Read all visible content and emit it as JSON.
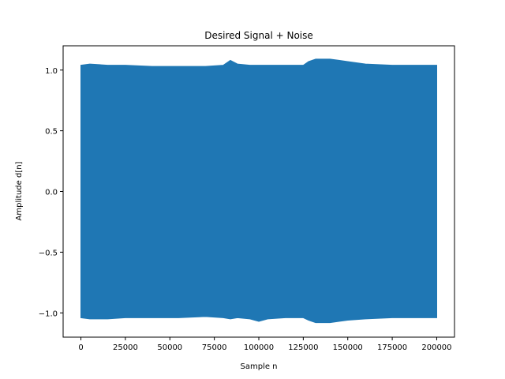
{
  "chart_data": {
    "type": "line",
    "title": "Desired Signal + Noise",
    "xlabel": "Sample n",
    "ylabel": "Amplitude d[n]",
    "xlim": [
      -10000,
      210000
    ],
    "ylim": [
      -1.2,
      1.2
    ],
    "x_ticks": [
      0,
      25000,
      50000,
      75000,
      100000,
      125000,
      150000,
      175000,
      200000
    ],
    "y_ticks": [
      -1.0,
      -0.5,
      0.0,
      0.5,
      1.0
    ],
    "x_tick_labels": [
      "0",
      "25000",
      "50000",
      "75000",
      "100000",
      "125000",
      "150000",
      "175000",
      "200000"
    ],
    "y_tick_labels": [
      "−1.0",
      "−0.5",
      "0.0",
      "0.5",
      "1.0"
    ],
    "grid": false,
    "series": [
      {
        "color": "#1f77b4",
        "envelope": {
          "x": [
            0,
            5000,
            15000,
            25000,
            40000,
            55000,
            70000,
            80000,
            84000,
            88000,
            95000,
            100000,
            105000,
            115000,
            120000,
            125000,
            128000,
            132000,
            140000,
            145000,
            150000,
            160000,
            175000,
            190000,
            200000
          ],
          "upper": [
            1.04,
            1.05,
            1.04,
            1.04,
            1.03,
            1.03,
            1.03,
            1.04,
            1.08,
            1.05,
            1.04,
            1.04,
            1.04,
            1.04,
            1.04,
            1.04,
            1.07,
            1.09,
            1.09,
            1.08,
            1.07,
            1.05,
            1.04,
            1.04,
            1.04
          ],
          "lower": [
            -1.04,
            -1.05,
            -1.05,
            -1.04,
            -1.04,
            -1.04,
            -1.03,
            -1.04,
            -1.05,
            -1.04,
            -1.05,
            -1.07,
            -1.05,
            -1.04,
            -1.04,
            -1.04,
            -1.06,
            -1.08,
            -1.08,
            -1.07,
            -1.06,
            -1.05,
            -1.04,
            -1.04,
            -1.04
          ]
        }
      }
    ]
  }
}
